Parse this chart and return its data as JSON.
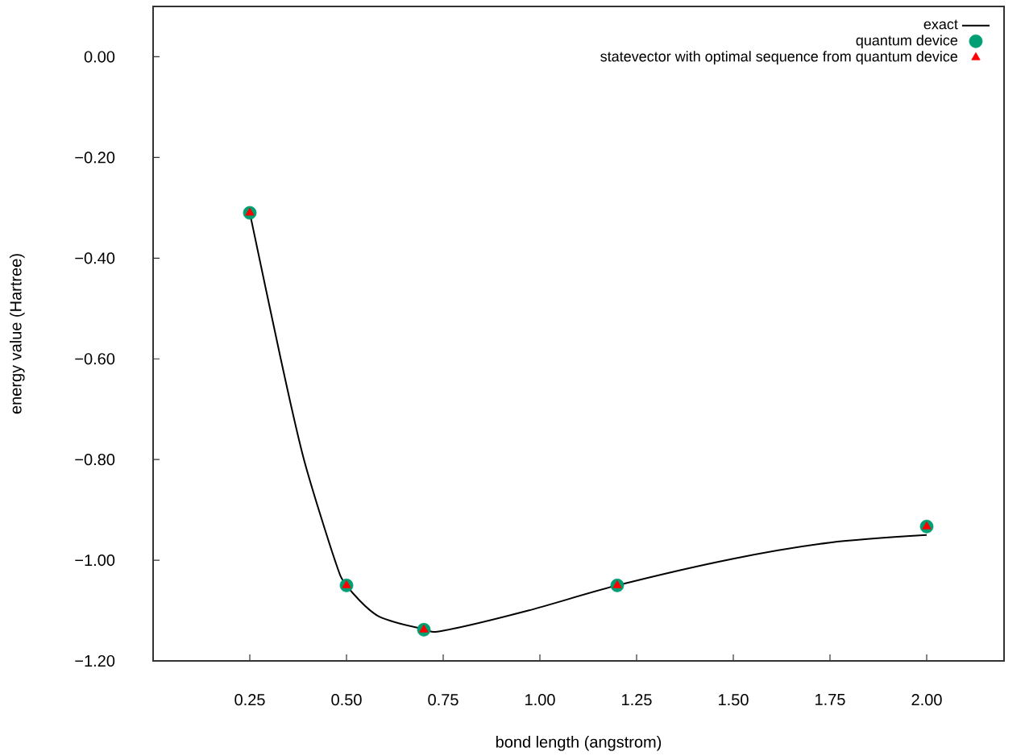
{
  "chart_data": {
    "type": "line",
    "xlabel": "bond length (angstrom)",
    "ylabel": "energy value (Hartree)",
    "xlim": [
      0,
      2.2
    ],
    "ylim": [
      -1.2,
      0.1
    ],
    "xticks": [
      {
        "value": 0.25,
        "label": "0.25"
      },
      {
        "value": 0.5,
        "label": "0.50"
      },
      {
        "value": 0.75,
        "label": "0.75"
      },
      {
        "value": 1.0,
        "label": "1.00"
      },
      {
        "value": 1.25,
        "label": "1.25"
      },
      {
        "value": 1.5,
        "label": "1.50"
      },
      {
        "value": 1.75,
        "label": "1.75"
      },
      {
        "value": 2.0,
        "label": "2.00"
      }
    ],
    "yticks": [
      {
        "value": -1.2,
        "label": "−1.20"
      },
      {
        "value": -1.0,
        "label": "−1.00"
      },
      {
        "value": -0.8,
        "label": "−0.80"
      },
      {
        "value": -0.6,
        "label": "−0.60"
      },
      {
        "value": -0.4,
        "label": "−0.40"
      },
      {
        "value": -0.2,
        "label": "−0.20"
      },
      {
        "value": 0.0,
        "label": "0.00"
      }
    ],
    "legend": "top right",
    "grid": false,
    "series": [
      {
        "name": "exact",
        "color": "#000000",
        "marker": "none",
        "line_style": "solid",
        "x": [
          0.25,
          0.33,
          0.39,
          0.47,
          0.5,
          0.58,
          0.7,
          0.75,
          0.97,
          1.2,
          1.5,
          1.75,
          2.0
        ],
        "values": [
          -0.31,
          -0.6,
          -0.8,
          -1.0,
          -1.05,
          -1.11,
          -1.137,
          -1.14,
          -1.1,
          -1.05,
          -0.997,
          -0.965,
          -0.95
        ]
      },
      {
        "name": "quantum device",
        "type": "scatter",
        "color": "#009e73",
        "marker": "circle",
        "x": [
          0.25,
          0.5,
          0.7,
          1.2,
          2.0
        ],
        "values": [
          -0.31,
          -1.05,
          -1.138,
          -1.05,
          -0.933
        ]
      },
      {
        "name": "statevector with optimal sequence from quantum device",
        "type": "scatter",
        "color": "#ff0000",
        "marker": "triangle",
        "x": [
          0.25,
          0.5,
          0.7,
          1.2,
          2.0
        ],
        "values": [
          -0.31,
          -1.05,
          -1.138,
          -1.05,
          -0.933
        ]
      }
    ]
  }
}
